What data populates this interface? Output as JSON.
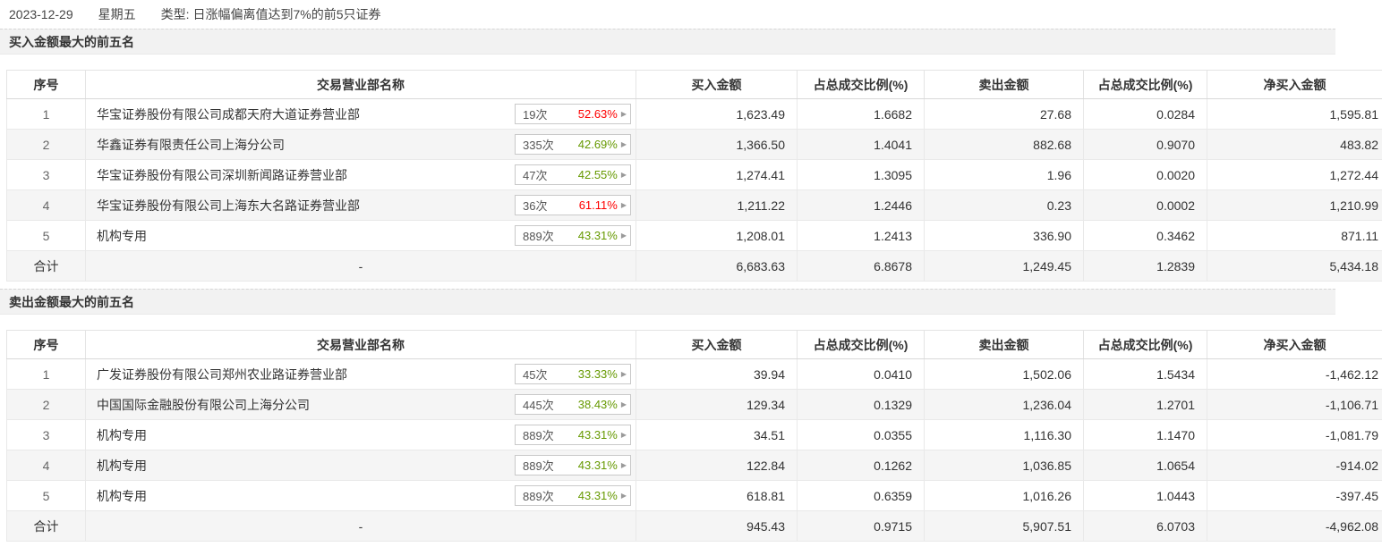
{
  "topbar": {
    "date": "2023-12-29",
    "weekday": "星期五",
    "type_label": "类型:",
    "type_value": "日涨幅偏离值达到7%的前5只证券"
  },
  "icons": {
    "chevron_right": "▶"
  },
  "colors": {
    "red": "#fe0000",
    "green": "#669900",
    "gray": "#999999"
  },
  "columns": [
    "序号",
    "交易营业部名称",
    "买入金额",
    "占总成交比例(%)",
    "卖出金额",
    "占总成交比例(%)",
    "净买入金额"
  ],
  "sections": [
    {
      "title": "买入金额最大的前五名",
      "rows": [
        {
          "rank": "1",
          "name": "华宝证券股份有限公司成都天府大道证券营业部",
          "count": "19次",
          "pct": "52.63%",
          "pct_color": "red",
          "buy": "1,623.49",
          "buy_ratio": "1.6682",
          "sell": "27.68",
          "sell_ratio": "0.0284",
          "net": "1,595.81",
          "net_color": "red"
        },
        {
          "rank": "2",
          "name": "华鑫证券有限责任公司上海分公司",
          "count": "335次",
          "pct": "42.69%",
          "pct_color": "green",
          "buy": "1,366.50",
          "buy_ratio": "1.4041",
          "sell": "882.68",
          "sell_ratio": "0.9070",
          "net": "483.82",
          "net_color": "red"
        },
        {
          "rank": "3",
          "name": "华宝证券股份有限公司深圳新闻路证券营业部",
          "count": "47次",
          "pct": "42.55%",
          "pct_color": "green",
          "buy": "1,274.41",
          "buy_ratio": "1.3095",
          "sell": "1.96",
          "sell_ratio": "0.0020",
          "net": "1,272.44",
          "net_color": "red"
        },
        {
          "rank": "4",
          "name": "华宝证券股份有限公司上海东大名路证券营业部",
          "count": "36次",
          "pct": "61.11%",
          "pct_color": "red",
          "buy": "1,211.22",
          "buy_ratio": "1.2446",
          "sell": "0.23",
          "sell_ratio": "0.0002",
          "net": "1,210.99",
          "net_color": "red"
        },
        {
          "rank": "5",
          "name": "机构专用",
          "count": "889次",
          "pct": "43.31%",
          "pct_color": "green",
          "buy": "1,208.01",
          "buy_ratio": "1.2413",
          "sell": "336.90",
          "sell_ratio": "0.3462",
          "net": "871.11",
          "net_color": "red"
        }
      ],
      "total": {
        "rank": "合计",
        "name": "-",
        "buy": "6,683.63",
        "buy_ratio": "6.8678",
        "sell": "1,249.45",
        "sell_ratio": "1.2839",
        "net": "5,434.18",
        "net_color": "red"
      }
    },
    {
      "title": "卖出金额最大的前五名",
      "rows": [
        {
          "rank": "1",
          "name": "广发证券股份有限公司郑州农业路证券营业部",
          "count": "45次",
          "pct": "33.33%",
          "pct_color": "green",
          "buy": "39.94",
          "buy_ratio": "0.0410",
          "sell": "1,502.06",
          "sell_ratio": "1.5434",
          "net": "-1,462.12",
          "net_color": "green"
        },
        {
          "rank": "2",
          "name": "中国国际金融股份有限公司上海分公司",
          "count": "445次",
          "pct": "38.43%",
          "pct_color": "green",
          "buy": "129.34",
          "buy_ratio": "0.1329",
          "sell": "1,236.04",
          "sell_ratio": "1.2701",
          "net": "-1,106.71",
          "net_color": "green"
        },
        {
          "rank": "3",
          "name": "机构专用",
          "count": "889次",
          "pct": "43.31%",
          "pct_color": "green",
          "buy": "34.51",
          "buy_ratio": "0.0355",
          "sell": "1,116.30",
          "sell_ratio": "1.1470",
          "net": "-1,081.79",
          "net_color": "green"
        },
        {
          "rank": "4",
          "name": "机构专用",
          "count": "889次",
          "pct": "43.31%",
          "pct_color": "green",
          "buy": "122.84",
          "buy_ratio": "0.1262",
          "sell": "1,036.85",
          "sell_ratio": "1.0654",
          "net": "-914.02",
          "net_color": "green"
        },
        {
          "rank": "5",
          "name": "机构专用",
          "count": "889次",
          "pct": "43.31%",
          "pct_color": "green",
          "buy": "618.81",
          "buy_ratio": "0.6359",
          "sell": "1,016.26",
          "sell_ratio": "1.0443",
          "net": "-397.45",
          "net_color": "green"
        }
      ],
      "total": {
        "rank": "合计",
        "name": "-",
        "buy": "945.43",
        "buy_ratio": "0.9715",
        "sell": "5,907.51",
        "sell_ratio": "6.0703",
        "net": "-4,962.08",
        "net_color": "green"
      }
    }
  ]
}
